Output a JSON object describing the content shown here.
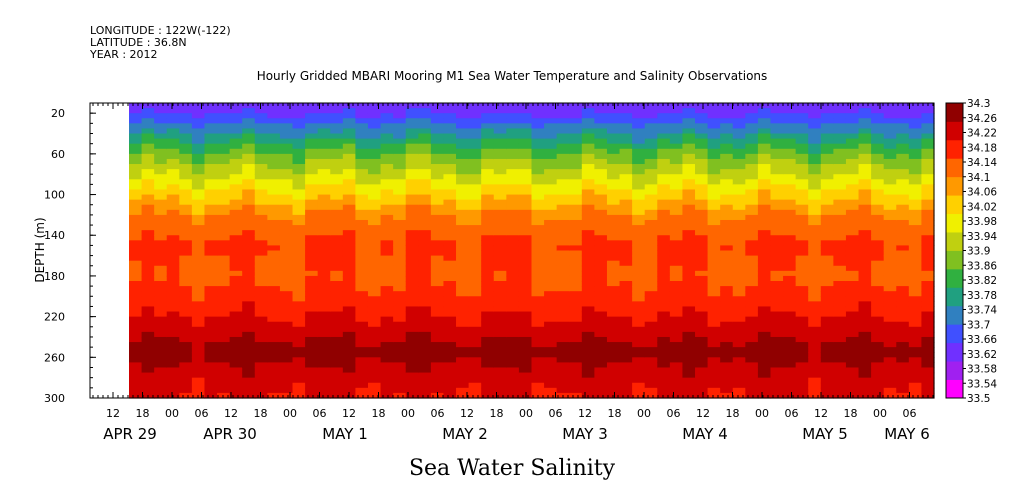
{
  "header": {
    "longitude": "LONGITUDE : 122W(-122)",
    "latitude": "LATITUDE : 36.8N",
    "year": "YEAR : 2012"
  },
  "chart_data": {
    "type": "heatmap",
    "title": "Hourly Gridded MBARI Mooring M1 Sea Water Temperature and Salinity Observations",
    "xlabel": "Sea Water Salinity",
    "ylabel": "DEPTH (m)",
    "ylim": [
      300,
      10
    ],
    "y_ticks": [
      20,
      60,
      100,
      140,
      180,
      220,
      260,
      300
    ],
    "x_hour_ticks": [
      "12",
      "18",
      "00",
      "06",
      "12",
      "18",
      "00",
      "06",
      "12",
      "18",
      "00",
      "06",
      "12",
      "18",
      "00",
      "06",
      "12",
      "18",
      "00",
      "06",
      "12",
      "18",
      "00",
      "06",
      "12",
      "18",
      "00",
      "06"
    ],
    "x_date_labels": [
      "APR 29",
      "APR 30",
      "MAY  1",
      "MAY  2",
      "MAY  3",
      "MAY  4",
      "MAY  5",
      "MAY  6"
    ],
    "colorbar_ticks": [
      "34.3",
      "34.26",
      "34.22",
      "34.18",
      "34.14",
      "34.1",
      "34.06",
      "34.02",
      "33.98",
      "33.94",
      "33.9",
      "33.86",
      "33.82",
      "33.78",
      "33.74",
      "33.7",
      "33.66",
      "33.62",
      "33.58",
      "33.54",
      "33.5"
    ],
    "colorbar_range": [
      33.5,
      34.3
    ],
    "depth_profile": [
      {
        "depth": 10,
        "salinity": 33.62
      },
      {
        "depth": 20,
        "salinity": 33.64
      },
      {
        "depth": 30,
        "salinity": 33.7
      },
      {
        "depth": 45,
        "salinity": 33.78
      },
      {
        "depth": 60,
        "salinity": 33.86
      },
      {
        "depth": 80,
        "salinity": 33.94
      },
      {
        "depth": 100,
        "salinity": 34.02
      },
      {
        "depth": 120,
        "salinity": 34.1
      },
      {
        "depth": 150,
        "salinity": 34.16
      },
      {
        "depth": 180,
        "salinity": 34.14
      },
      {
        "depth": 210,
        "salinity": 34.18
      },
      {
        "depth": 240,
        "salinity": 34.24
      },
      {
        "depth": 255,
        "salinity": 34.28
      },
      {
        "depth": 270,
        "salinity": 34.24
      },
      {
        "depth": 300,
        "salinity": 34.2
      }
    ],
    "grid": false,
    "legend": "right"
  },
  "colors": {
    "palette": [
      "#ff00ff",
      "#a020f0",
      "#7030ff",
      "#4050ff",
      "#3080c0",
      "#20a080",
      "#30b040",
      "#80c020",
      "#c0d010",
      "#f0f000",
      "#ffd000",
      "#ff9900",
      "#ff6600",
      "#ff2200",
      "#d00000",
      "#900000"
    ]
  }
}
